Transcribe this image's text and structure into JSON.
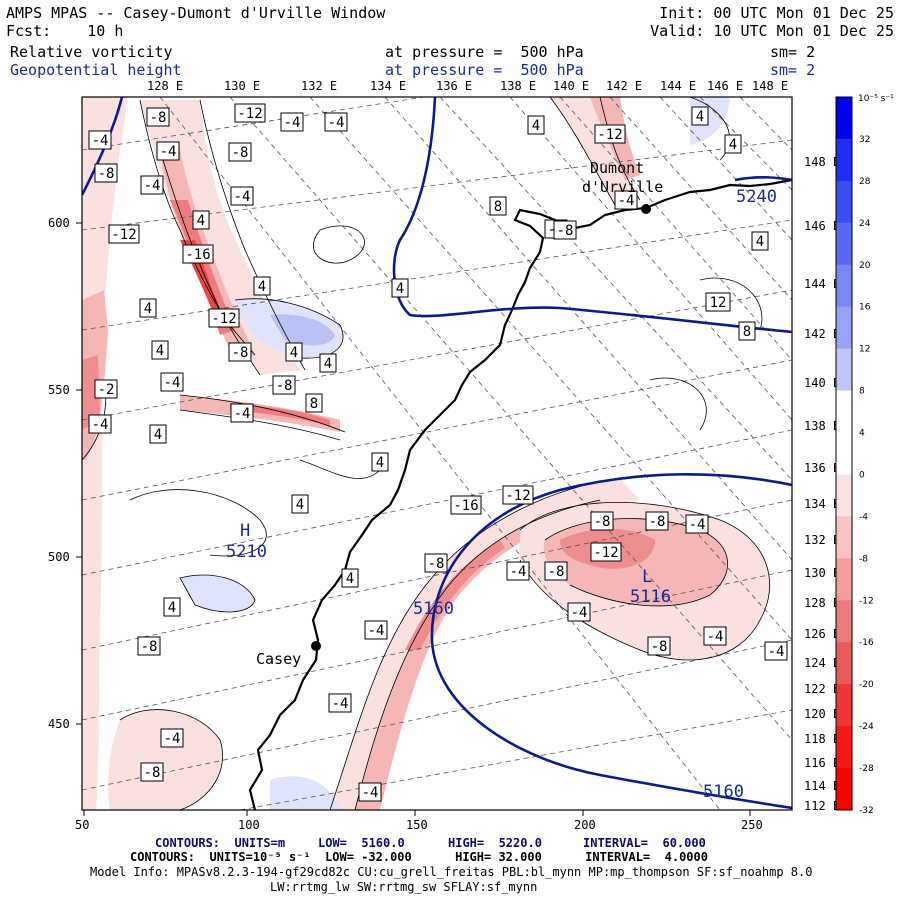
{
  "header": {
    "title": "AMPS MPAS -- Casey-Dumont d'Urville Window",
    "fcst_label": "Fcst:",
    "fcst_value": "10 h",
    "init": "Init: 00 UTC Mon 01 Dec 25",
    "valid": "Valid: 10 UTC Mon 01 Dec 25",
    "field1": {
      "name": "Relative vorticity",
      "level": "at pressure =  500 hPa",
      "sm": "sm= 2"
    },
    "field2": {
      "name": "Geopotential height",
      "level": "at pressure =  500 hPa",
      "sm": "sm= 2"
    }
  },
  "colors": {
    "height_contour": "#0b1b8c",
    "coast": "#000000",
    "neg_vort": "#e84040",
    "pos_vort": "#3a4fd8"
  },
  "lon_labels": [
    "128 E",
    "130 E",
    "132 E",
    "134 E",
    "136 E",
    "138 E",
    "140 E",
    "142 E",
    "144 E",
    "146 E",
    "148 E"
  ],
  "lat_labels": [
    "148 E",
    "146 E",
    "144 E",
    "142 E",
    "140 E",
    "138 E",
    "136 E",
    "134 E",
    "132 E",
    "130 E",
    "128 E",
    "126 E",
    "124 E",
    "122 E",
    "120 E",
    "118 E",
    "116 E",
    "114 E",
    "112 E"
  ],
  "x_ticks": [
    "50",
    "100",
    "150",
    "200",
    "250"
  ],
  "y_ticks": [
    "600",
    "550",
    "500",
    "450"
  ],
  "stations": [
    {
      "name": "Dumont d'Urville",
      "line1": "Dumont",
      "line2": "d'Urville"
    },
    {
      "name": "Casey",
      "line1": "Casey"
    }
  ],
  "height_labels": [
    "5240",
    "5210",
    "5116",
    "5160",
    "5160"
  ],
  "highs_lows": [
    "H",
    "L"
  ],
  "contour_labels": {
    "neg": [
      "-8",
      "-12",
      "-4",
      "-4",
      "-4",
      "-8",
      "-4",
      "-8",
      "-4",
      "-4",
      "-12",
      "-16",
      "-12",
      "-8",
      "-4",
      "-8",
      "-2",
      "-4",
      "-4",
      "-4",
      "-4",
      "-8",
      "-12",
      "-16",
      "-12",
      "-8",
      "-12",
      "-8",
      "-8",
      "-4",
      "-4",
      "-4",
      "-4",
      "-8",
      "-8",
      "-4",
      "-8",
      "-4",
      "-8",
      "-4",
      "-4",
      "-4"
    ],
    "pos": [
      "4",
      "4",
      "4",
      "8",
      "4",
      "4",
      "4",
      "4",
      "12",
      "8",
      "4",
      "4",
      "4",
      "4",
      "4",
      "8",
      "4",
      "4",
      "4",
      "4"
    ]
  },
  "colorbar": {
    "unit": "10⁻⁵ s⁻¹",
    "labels": [
      "32",
      "28",
      "24",
      "20",
      "16",
      "12",
      "8",
      "4",
      "0",
      "-4",
      "-8",
      "-12",
      "-16",
      "-20",
      "-24",
      "-28",
      "-32"
    ],
    "colors": [
      "#0000f0",
      "#1f2ef2",
      "#3a4ff2",
      "#5a6bf2",
      "#7887f2",
      "#98a3f4",
      "#c0c7f8",
      "#ffffff",
      "#ffffff",
      "#fce3e3",
      "#f7c2c2",
      "#f29e9e",
      "#ee7c7c",
      "#ea5a5a",
      "#ee3636",
      "#f41818",
      "#ff0000"
    ]
  },
  "footer": {
    "line1_units": "CONTOURS:  UNITS=m",
    "line1_low": "LOW=  5160.0",
    "line1_high": "HIGH=  5220.0",
    "line1_interval": "INTERVAL=  60.000",
    "line2": "CONTOURS:  UNITS=10⁻⁵ s⁻¹  LOW= -32.000      HIGH= 32.000      INTERVAL=  4.0000",
    "line3": "Model Info: MPASv8.2.3-194-gf29cd82c CU:cu_grell_freitas PBL:bl_mynn MP:mp_thompson SF:sf_noahmp 8.0",
    "line4": "LW:rrtmg_lw SW:rrtmg_sw SFLAY:sf_mynn"
  }
}
